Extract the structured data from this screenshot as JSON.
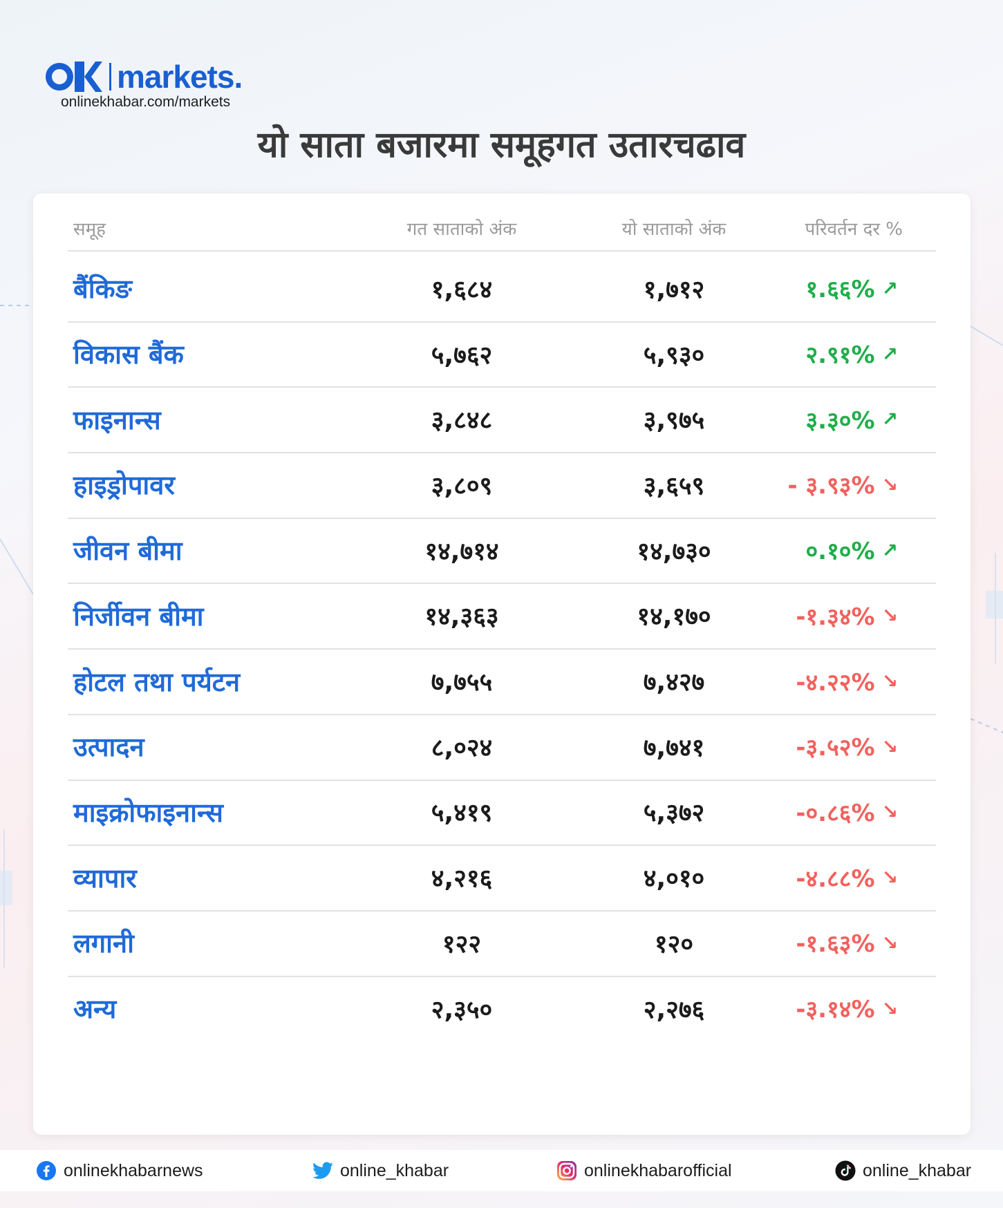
{
  "brand": {
    "logo": "OK | markets.",
    "site": "onlinekhabar.com/markets"
  },
  "title": "यो साता बजारमा समूहगत उतारचढाव",
  "table": {
    "headers": [
      "समूह",
      "गत साताको अंक",
      "यो साताको अंक",
      "परिवर्तन दर %"
    ],
    "rows": [
      {
        "name": "बैंकिङ",
        "prev": "१,६८४",
        "curr": "१,७१२",
        "change": "१.६६%",
        "direction": "up"
      },
      {
        "name": "विकास बैंक",
        "prev": "५,७६२",
        "curr": "५,९३०",
        "change": "२.९१%",
        "direction": "up"
      },
      {
        "name": "फाइनान्स",
        "prev": "३,८४८",
        "curr": "३,९७५",
        "change": "३.३०%",
        "direction": "up"
      },
      {
        "name": "हाइड्रोपावर",
        "prev": "३,८०९",
        "curr": "३,६५९",
        "change": "- ३.९३%",
        "direction": "down"
      },
      {
        "name": "जीवन बीमा",
        "prev": "१४,७१४",
        "curr": "१४,७३०",
        "change": "०.१०%",
        "direction": "up"
      },
      {
        "name": "निर्जीवन बीमा",
        "prev": "१४,३६३",
        "curr": "१४,१७०",
        "change": "-१.३४%",
        "direction": "down"
      },
      {
        "name": "होटल तथा पर्यटन",
        "prev": "७,७५५",
        "curr": "७,४२७",
        "change": "-४.२२%",
        "direction": "down"
      },
      {
        "name": "उत्पादन",
        "prev": "८,०२४",
        "curr": "७,७४१",
        "change": "-३.५२%",
        "direction": "down"
      },
      {
        "name": "माइक्रोफाइनान्स",
        "prev": "५,४१९",
        "curr": "५,३७२",
        "change": "-०.८६%",
        "direction": "down"
      },
      {
        "name": "व्यापार",
        "prev": "४,२१६",
        "curr": "४,०१०",
        "change": "-४.८८%",
        "direction": "down"
      },
      {
        "name": "लगानी",
        "prev": "१२२",
        "curr": "१२०",
        "change": "-१.६३%",
        "direction": "down"
      },
      {
        "name": "अन्य",
        "prev": "२,३५०",
        "curr": "२,२७६",
        "change": "-३.१४%",
        "direction": "down"
      }
    ]
  },
  "colors": {
    "up": "#1fae4a",
    "down": "#f2615d",
    "name": "#1f6ad8",
    "brand": "#1a5fd1"
  },
  "footer": [
    {
      "icon": "facebook-icon",
      "handle": "onlinekhabarnews"
    },
    {
      "icon": "twitter-icon",
      "handle": "online_khabar"
    },
    {
      "icon": "instagram-icon",
      "handle": "onlinekhabarofficial"
    },
    {
      "icon": "tiktok-icon",
      "handle": "online_khabar"
    }
  ]
}
